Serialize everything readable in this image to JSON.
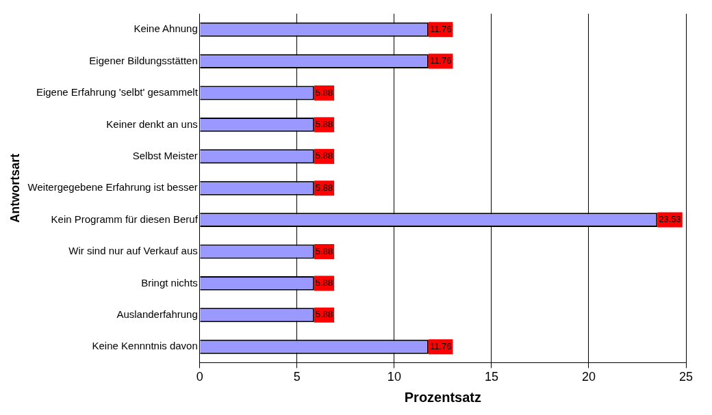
{
  "chart_data": {
    "type": "bar",
    "orientation": "horizontal",
    "xlabel": "Prozentsatz",
    "ylabel": "Antwortsart",
    "categories": [
      "Keine Ahnung",
      "Eigener Bildungsstätten",
      "Eigene Erfahrung 'selbt' gesammelt",
      "Keiner denkt an uns",
      "Selbst Meister",
      "Weitergegebene Erfahrung ist besser",
      "Kein Programm für diesen Beruf",
      "Wir sind nur auf Verkauf aus",
      "Bringt nichts",
      "Auslanderfahrung",
      "Keine Kennntnis davon"
    ],
    "values": [
      11.76,
      11.76,
      5.88,
      5.88,
      5.88,
      5.88,
      23.53,
      5.88,
      5.88,
      5.88,
      11.76
    ],
    "color": "#9999ff",
    "xlim": [
      0,
      25
    ],
    "xticks": [
      0,
      5,
      10,
      15,
      20,
      25
    ],
    "grid": "x",
    "data_labels": true
  }
}
